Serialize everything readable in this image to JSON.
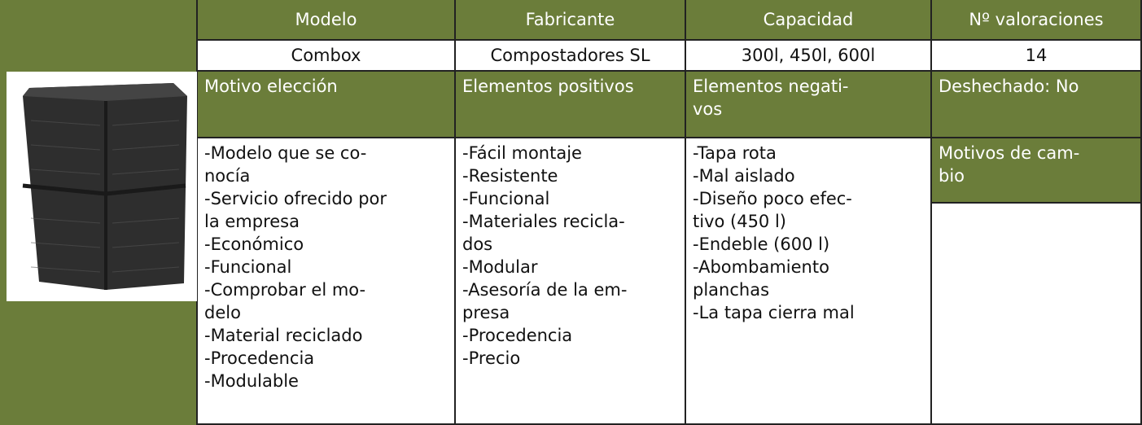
{
  "table": {
    "header": [
      "Modelo",
      "Fabricante",
      "Capacidad",
      "Nº valoraciones"
    ],
    "row": [
      "Combox",
      "Compostadores SL",
      "300l, 450l, 600l",
      "14"
    ],
    "subheader": [
      [
        "Motivo elección"
      ],
      [
        "Elementos positivos"
      ],
      [
        "Elementos negati-",
        "vos"
      ],
      [
        "Deshechado: No"
      ]
    ],
    "lists": [
      [
        "-Modelo que se co-",
        "nocía",
        "-Servicio ofrecido por",
        "la empresa",
        "-Económico",
        "-Funcional",
        "-Comprobar el mo-",
        "delo",
        "-Material reciclado",
        "-Procedencia",
        "-Modulable"
      ],
      [
        "-Fácil montaje",
        "-Resistente",
        "-Funcional",
        "-Materiales recicla-",
        "dos",
        "-Modular",
        "-Asesoría de la em-",
        "presa",
        "-Procedencia",
        "-Precio"
      ],
      [
        "-Tapa rota",
        "-Mal aislado",
        "-Diseño poco efec-",
        "tivo (450 l)",
        "-Endeble (600 l)",
        "-Abombamiento",
        "planchas",
        "-La tapa cierra mal"
      ]
    ],
    "change_reasons": [
      "Motivos de cam-",
      "bio"
    ]
  }
}
